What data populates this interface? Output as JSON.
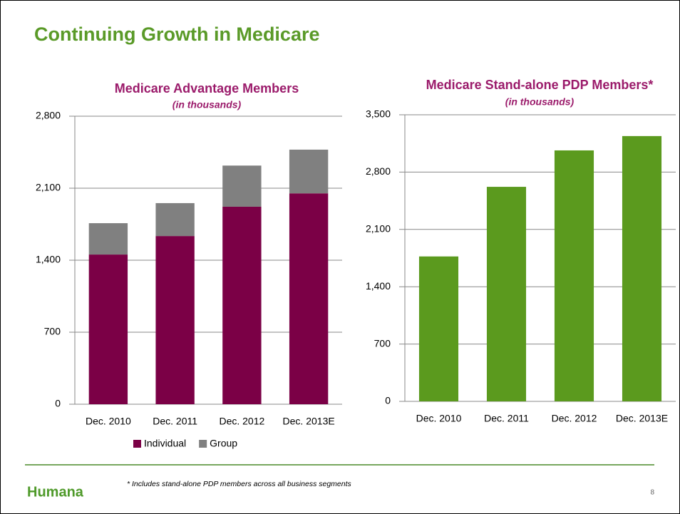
{
  "title": "Continuing Growth in Medicare",
  "chart_data": [
    {
      "type": "bar",
      "stacked": true,
      "title": "Medicare Advantage Members",
      "subtitle": "(in thousands)",
      "categories": [
        "Dec. 2010",
        "Dec. 2011",
        "Dec. 2012",
        "Dec. 2013E"
      ],
      "series": [
        {
          "name": "Individual",
          "color": "#7b0046",
          "values": [
            1455,
            1635,
            1920,
            2050
          ]
        },
        {
          "name": "Group",
          "color": "#808080",
          "values": [
            305,
            320,
            400,
            425
          ]
        }
      ],
      "ylim": [
        0,
        2800
      ],
      "yticks": [
        0,
        {
          "value": 700,
          "label": "700"
        },
        {
          "value": 1400,
          "label": "1,400"
        },
        {
          "value": 2100,
          "label": "2,100"
        },
        {
          "value": 2800,
          "label": "2,800"
        }
      ],
      "grid": true,
      "legend": "bottom"
    },
    {
      "type": "bar",
      "title": "Medicare Stand-alone PDP Members*",
      "subtitle": "(in thousands)",
      "categories": [
        "Dec. 2010",
        "Dec. 2011",
        "Dec. 2012",
        "Dec. 2013E"
      ],
      "values": [
        1770,
        2620,
        3065,
        3240
      ],
      "color": "#5b9a1e",
      "ylim": [
        0,
        3500
      ],
      "yticks": [
        0,
        {
          "value": 700,
          "label": "700"
        },
        {
          "value": 1400,
          "label": "1,400"
        },
        {
          "value": 2100,
          "label": "2,100"
        },
        {
          "value": 2800,
          "label": "2,800"
        },
        {
          "value": 3500,
          "label": "3,500"
        }
      ],
      "grid": true
    }
  ],
  "footer": {
    "logo": "Humana",
    "footnote": "* Includes stand-alone PDP members across all business segments",
    "page": "8"
  }
}
